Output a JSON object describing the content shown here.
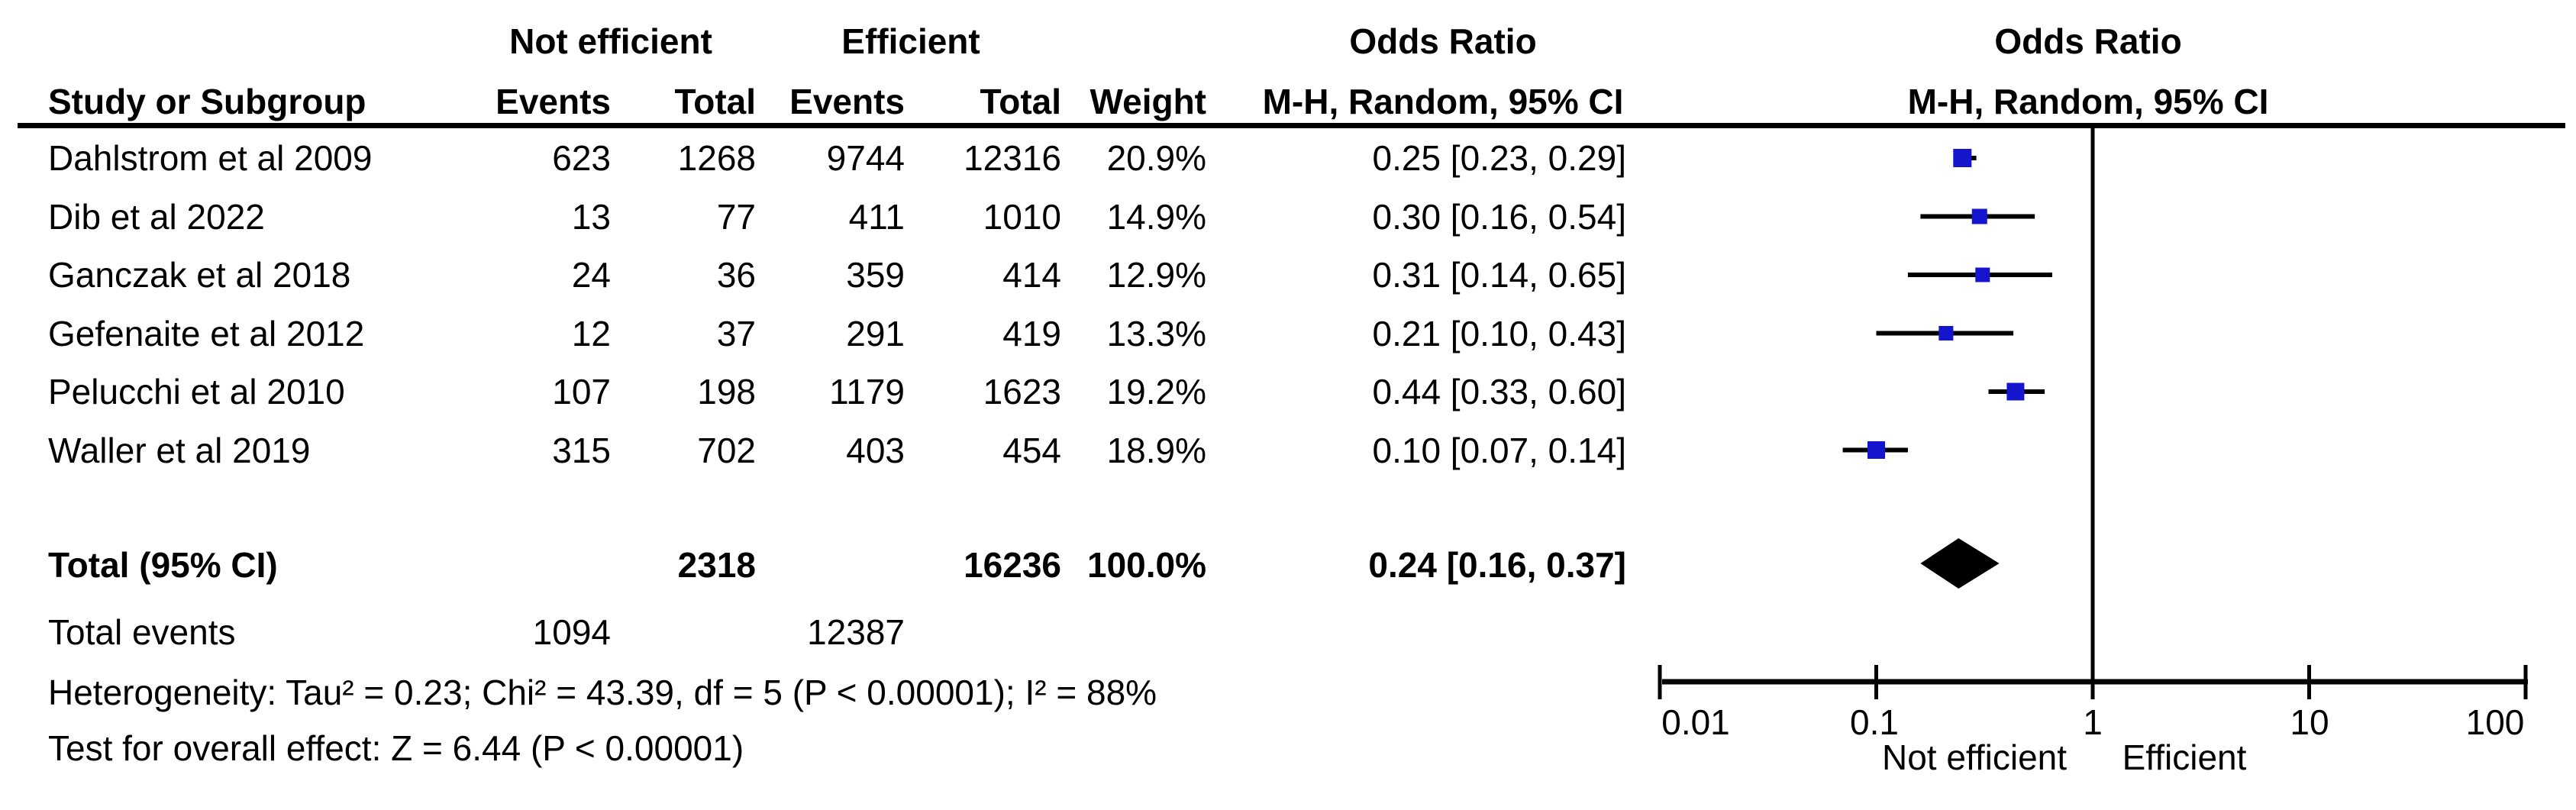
{
  "table": {
    "group_headers": {
      "not_efficient": "Not efficient",
      "efficient": "Efficient",
      "odds_ratio_left": "Odds Ratio",
      "odds_ratio_right": "Odds Ratio"
    },
    "columns": {
      "study": "Study or Subgroup",
      "events": "Events",
      "total": "Total",
      "weight": "Weight",
      "mh_ci": "M-H, Random, 95% CI"
    }
  },
  "rows": [
    {
      "study": "Dahlstrom et al 2009",
      "ne_events": "623",
      "ne_total": "1268",
      "e_events": "9744",
      "e_total": "12316",
      "weight": "20.9%",
      "or_ci": "0.25 [0.23, 0.29]"
    },
    {
      "study": "Dib et al 2022",
      "ne_events": "13",
      "ne_total": "77",
      "e_events": "411",
      "e_total": "1010",
      "weight": "14.9%",
      "or_ci": "0.30 [0.16, 0.54]"
    },
    {
      "study": "Ganczak et al 2018",
      "ne_events": "24",
      "ne_total": "36",
      "e_events": "359",
      "e_total": "414",
      "weight": "12.9%",
      "or_ci": "0.31 [0.14, 0.65]"
    },
    {
      "study": "Gefenaite et al 2012",
      "ne_events": "12",
      "ne_total": "37",
      "e_events": "291",
      "e_total": "419",
      "weight": "13.3%",
      "or_ci": "0.21 [0.10, 0.43]"
    },
    {
      "study": "Pelucchi et al 2010",
      "ne_events": "107",
      "ne_total": "198",
      "e_events": "1179",
      "e_total": "1623",
      "weight": "19.2%",
      "or_ci": "0.44 [0.33, 0.60]"
    },
    {
      "study": "Waller et al 2019",
      "ne_events": "315",
      "ne_total": "702",
      "e_events": "403",
      "e_total": "454",
      "weight": "18.9%",
      "or_ci": "0.10 [0.07, 0.14]"
    }
  ],
  "totals": {
    "label": "Total (95% CI)",
    "ne_total": "2318",
    "e_total": "16236",
    "weight": "100.0%",
    "or_ci": "0.24 [0.16, 0.37]"
  },
  "total_events": {
    "label": "Total events",
    "ne": "1094",
    "e": "12387"
  },
  "footer": {
    "heterogeneity": "Heterogeneity: Tau² = 0.23; Chi² = 43.39, df = 5 (P < 0.00001); I² = 88%",
    "overall_effect": "Test for overall effect: Z = 6.44 (P < 0.00001)"
  },
  "chart_data": {
    "type": "forest",
    "x_scale": "log",
    "axis_ticks": [
      0.01,
      0.1,
      1,
      10,
      100
    ],
    "axis_tick_labels": [
      "0.01",
      "0.1",
      "1",
      "10",
      "100"
    ],
    "xlabel_left": "Not efficient",
    "xlabel_right": "Efficient",
    "effect_measure": "Odds Ratio, M-H, Random, 95% CI",
    "studies": [
      {
        "name": "Dahlstrom et al 2009",
        "or": 0.25,
        "ci": [
          0.23,
          0.29
        ],
        "weight_pct": 20.9
      },
      {
        "name": "Dib et al 2022",
        "or": 0.3,
        "ci": [
          0.16,
          0.54
        ],
        "weight_pct": 14.9
      },
      {
        "name": "Ganczak et al 2018",
        "or": 0.31,
        "ci": [
          0.14,
          0.65
        ],
        "weight_pct": 12.9
      },
      {
        "name": "Gefenaite et al 2012",
        "or": 0.21,
        "ci": [
          0.1,
          0.43
        ],
        "weight_pct": 13.3
      },
      {
        "name": "Pelucchi et al 2010",
        "or": 0.44,
        "ci": [
          0.33,
          0.6
        ],
        "weight_pct": 19.2
      },
      {
        "name": "Waller et al 2019",
        "or": 0.1,
        "ci": [
          0.07,
          0.14
        ],
        "weight_pct": 18.9
      }
    ],
    "total": {
      "or": 0.24,
      "ci": [
        0.16,
        0.37
      ]
    },
    "colors": {
      "marker": "#1515CE",
      "ci_line": "#000000",
      "diamond": "#000000",
      "axis": "#000000"
    }
  }
}
